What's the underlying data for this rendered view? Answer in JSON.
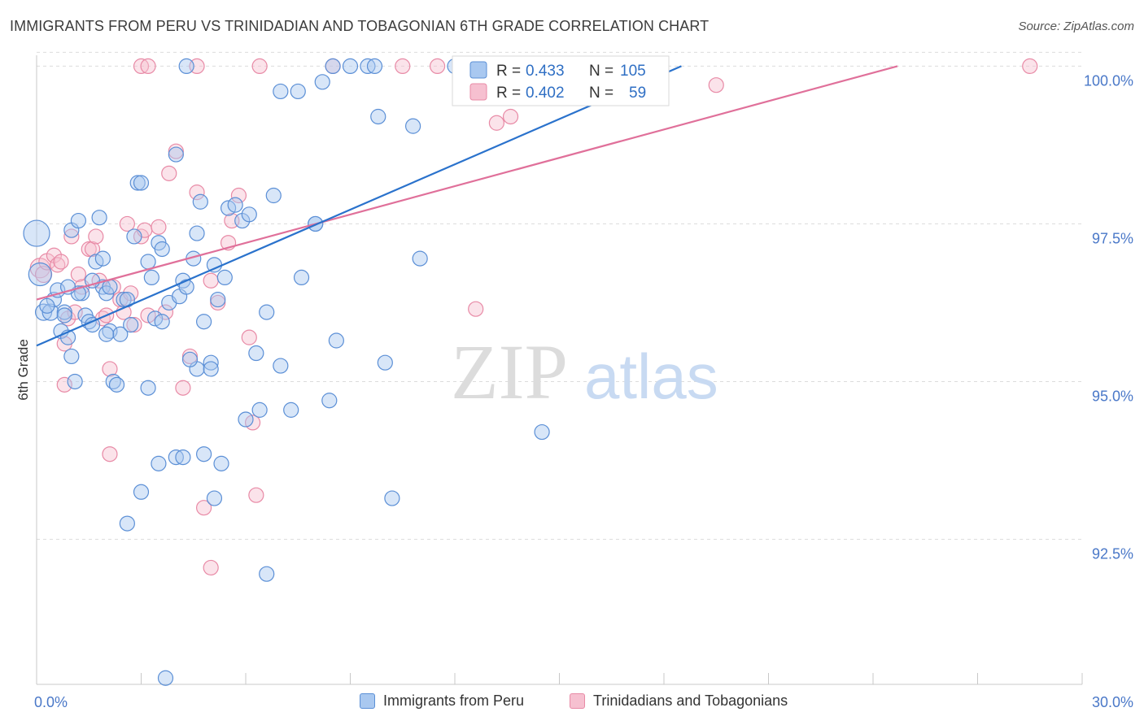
{
  "header": {
    "title": "IMMIGRANTS FROM PERU VS TRINIDADIAN AND TOBAGONIAN 6TH GRADE CORRELATION CHART",
    "source": "Source: ZipAtlas.com"
  },
  "watermark": {
    "zip": "ZIP",
    "atlas": "atlas"
  },
  "colors": {
    "blue_fill": "#a9c8f0",
    "blue_stroke": "#5b8fd6",
    "blue_line": "#2a72cc",
    "pink_fill": "#f6c0d0",
    "pink_stroke": "#e88aa6",
    "pink_line": "#e0709a",
    "tick_label": "#4a78c8",
    "grid": "#dcdcdc"
  },
  "stats_legend": [
    {
      "r_label": "R =",
      "r_value": "0.433",
      "n_label": "N =",
      "n_value": "105"
    },
    {
      "r_label": "R =",
      "r_value": "0.402",
      "n_label": "N =",
      "n_value": "59"
    }
  ],
  "bottom_legend": [
    {
      "label": "Immigrants from Peru"
    },
    {
      "label": "Trinidadians and Tobagonians"
    }
  ],
  "chart_data": {
    "type": "scatter",
    "title": "IMMIGRANTS FROM PERU VS TRINIDADIAN AND TOBAGONIAN 6TH GRADE CORRELATION CHART",
    "xlabel": "",
    "ylabel": "6th Grade",
    "xlim": [
      0,
      30
    ],
    "ylim": [
      90.2,
      100.25
    ],
    "x_tick_labels": [
      {
        "value": 0,
        "label": "0.0%"
      },
      {
        "value": 30,
        "label": "30.0%"
      }
    ],
    "y_tick_labels": [
      {
        "value": 100,
        "label": "100.0%"
      },
      {
        "value": 97.5,
        "label": "97.5%"
      },
      {
        "value": 95,
        "label": "95.0%"
      },
      {
        "value": 92.5,
        "label": "92.5%"
      }
    ],
    "series": [
      {
        "name": "Immigrants from Peru",
        "R": 0.433,
        "N": 105,
        "trend": {
          "x0": 0,
          "y0": 95.57,
          "x1": 18.5,
          "y1": 100
        },
        "points": [
          [
            0.0,
            97.35,
            16
          ],
          [
            0.1,
            96.7,
            14
          ],
          [
            0.2,
            96.1,
            10
          ],
          [
            0.4,
            96.1,
            10
          ],
          [
            0.5,
            96.3,
            9
          ],
          [
            0.6,
            96.45,
            9
          ],
          [
            0.7,
            95.8,
            9
          ],
          [
            0.8,
            96.1,
            9
          ],
          [
            0.9,
            95.7,
            9
          ],
          [
            1.0,
            97.4,
            9
          ],
          [
            1.0,
            95.4,
            9
          ],
          [
            1.1,
            95.0,
            9
          ],
          [
            1.2,
            97.55,
            9
          ],
          [
            1.3,
            96.4,
            9
          ],
          [
            1.4,
            96.05,
            9
          ],
          [
            1.5,
            95.95,
            9
          ],
          [
            1.6,
            95.9,
            9
          ],
          [
            1.7,
            96.9,
            9
          ],
          [
            1.8,
            97.6,
            9
          ],
          [
            1.9,
            96.5,
            9
          ],
          [
            2.0,
            96.4,
            9
          ],
          [
            2.1,
            95.8,
            9
          ],
          [
            2.2,
            95.0,
            9
          ],
          [
            2.4,
            95.75,
            9
          ],
          [
            2.5,
            96.3,
            9
          ],
          [
            2.6,
            96.3,
            9
          ],
          [
            2.7,
            95.9,
            9
          ],
          [
            2.8,
            97.3,
            9
          ],
          [
            2.9,
            98.15,
            9
          ],
          [
            3.0,
            98.15,
            9
          ],
          [
            3.2,
            96.9,
            9
          ],
          [
            3.3,
            96.65,
            9
          ],
          [
            3.4,
            96.0,
            9
          ],
          [
            3.5,
            97.2,
            9
          ],
          [
            3.6,
            97.1,
            9
          ],
          [
            3.8,
            96.25,
            9
          ],
          [
            4.0,
            98.6,
            9
          ],
          [
            4.1,
            96.35,
            9
          ],
          [
            4.2,
            96.6,
            9
          ],
          [
            4.3,
            96.5,
            9
          ],
          [
            4.5,
            96.95,
            9
          ],
          [
            4.6,
            97.35,
            9
          ],
          [
            4.7,
            97.85,
            9
          ],
          [
            4.8,
            95.95,
            9
          ],
          [
            5.0,
            95.3,
            9
          ],
          [
            5.1,
            96.85,
            9
          ],
          [
            5.2,
            96.3,
            9
          ],
          [
            5.4,
            96.65,
            9
          ],
          [
            5.5,
            97.75,
            9
          ],
          [
            5.7,
            97.8,
            9
          ],
          [
            5.9,
            97.55,
            9
          ],
          [
            6.1,
            97.65,
            9
          ],
          [
            6.3,
            95.45,
            9
          ],
          [
            6.6,
            96.1,
            9
          ],
          [
            6.8,
            97.95,
            9
          ],
          [
            7.0,
            95.25,
            9
          ],
          [
            7.3,
            94.55,
            9
          ],
          [
            7.6,
            96.65,
            9
          ],
          [
            8.0,
            97.5,
            9
          ],
          [
            8.2,
            99.75,
            9
          ],
          [
            8.4,
            94.7,
            9
          ],
          [
            8.6,
            95.65,
            9
          ],
          [
            9.0,
            100.0,
            9
          ],
          [
            9.5,
            100.0,
            9
          ],
          [
            9.8,
            99.2,
            9
          ],
          [
            10.0,
            95.3,
            9
          ],
          [
            10.2,
            93.15,
            9
          ],
          [
            10.8,
            99.05,
            9
          ],
          [
            11.0,
            96.95,
            9
          ],
          [
            12.0,
            100.0,
            9
          ],
          [
            13.0,
            100.0,
            9
          ],
          [
            14.5,
            94.2,
            9
          ],
          [
            3.7,
            90.3,
            9
          ],
          [
            2.6,
            92.75,
            9
          ],
          [
            3.0,
            93.25,
            9
          ],
          [
            3.5,
            93.7,
            9
          ],
          [
            4.0,
            93.8,
            9
          ],
          [
            4.2,
            93.8,
            9
          ],
          [
            4.8,
            93.85,
            9
          ],
          [
            5.1,
            93.15,
            9
          ],
          [
            5.3,
            93.7,
            9
          ],
          [
            6.0,
            94.4,
            9
          ],
          [
            6.4,
            94.55,
            9
          ],
          [
            6.6,
            91.95,
            9
          ],
          [
            7.0,
            99.6,
            9
          ],
          [
            7.5,
            99.6,
            9
          ],
          [
            4.3,
            100.0,
            9
          ],
          [
            8.5,
            100.0,
            9
          ],
          [
            9.7,
            100.0,
            9
          ],
          [
            12.5,
            99.5,
            9
          ],
          [
            3.2,
            94.9,
            9
          ],
          [
            2.3,
            94.95,
            9
          ],
          [
            4.6,
            95.2,
            9
          ],
          [
            1.6,
            96.6,
            9
          ],
          [
            2.1,
            96.5,
            9
          ],
          [
            0.3,
            96.2,
            9
          ],
          [
            0.8,
            96.05,
            9
          ],
          [
            1.2,
            96.4,
            9
          ],
          [
            5.0,
            95.2,
            9
          ],
          [
            2.0,
            95.75,
            9
          ],
          [
            3.6,
            95.95,
            9
          ],
          [
            4.4,
            95.35,
            9
          ],
          [
            0.9,
            96.5,
            9
          ],
          [
            8.0,
            97.5,
            9
          ],
          [
            1.9,
            96.95,
            9
          ]
        ]
      },
      {
        "name": "Trinidadians and Tobagonians",
        "R": 0.402,
        "N": 59,
        "trend": {
          "x0": 0,
          "y0": 96.3,
          "x1": 24.7,
          "y1": 100
        },
        "points": [
          [
            0.1,
            96.8,
            12
          ],
          [
            0.2,
            96.7,
            10
          ],
          [
            0.3,
            96.9,
            10
          ],
          [
            0.5,
            97.0,
            9
          ],
          [
            0.6,
            96.85,
            9
          ],
          [
            0.7,
            96.9,
            9
          ],
          [
            0.8,
            95.6,
            9
          ],
          [
            0.9,
            96.0,
            9
          ],
          [
            1.0,
            97.3,
            9
          ],
          [
            1.1,
            96.1,
            9
          ],
          [
            1.2,
            96.7,
            9
          ],
          [
            1.3,
            96.5,
            9
          ],
          [
            1.5,
            97.1,
            9
          ],
          [
            1.6,
            97.1,
            9
          ],
          [
            1.7,
            97.3,
            9
          ],
          [
            1.8,
            96.6,
            9
          ],
          [
            1.9,
            96.0,
            9
          ],
          [
            2.0,
            96.05,
            9
          ],
          [
            2.1,
            95.2,
            9
          ],
          [
            2.2,
            96.5,
            9
          ],
          [
            2.4,
            96.3,
            9
          ],
          [
            2.5,
            96.1,
            9
          ],
          [
            2.6,
            97.5,
            9
          ],
          [
            2.7,
            96.4,
            9
          ],
          [
            2.8,
            95.9,
            9
          ],
          [
            3.0,
            97.3,
            9
          ],
          [
            3.1,
            97.4,
            9
          ],
          [
            3.2,
            96.05,
            9
          ],
          [
            3.5,
            97.45,
            9
          ],
          [
            3.7,
            96.1,
            9
          ],
          [
            3.8,
            98.3,
            9
          ],
          [
            4.0,
            98.65,
            9
          ],
          [
            4.2,
            94.9,
            9
          ],
          [
            4.4,
            95.4,
            9
          ],
          [
            4.6,
            98.0,
            9
          ],
          [
            4.8,
            93.0,
            9
          ],
          [
            5.0,
            96.6,
            9
          ],
          [
            5.2,
            96.25,
            9
          ],
          [
            5.5,
            97.2,
            9
          ],
          [
            5.6,
            97.55,
            9
          ],
          [
            5.8,
            97.95,
            9
          ],
          [
            6.1,
            95.7,
            9
          ],
          [
            6.2,
            94.35,
            9
          ],
          [
            6.3,
            93.2,
            9
          ],
          [
            3.0,
            100.0,
            9
          ],
          [
            3.2,
            100.0,
            9
          ],
          [
            4.6,
            100.0,
            9
          ],
          [
            6.4,
            100.0,
            9
          ],
          [
            8.5,
            100.0,
            9
          ],
          [
            10.5,
            100.0,
            9
          ],
          [
            11.5,
            100.0,
            9
          ],
          [
            12.6,
            96.15,
            9
          ],
          [
            13.2,
            99.1,
            9
          ],
          [
            13.6,
            99.2,
            9
          ],
          [
            19.5,
            99.7,
            9
          ],
          [
            28.5,
            100.0,
            9
          ],
          [
            5.0,
            92.05,
            9
          ],
          [
            2.1,
            93.85,
            9
          ],
          [
            0.8,
            94.95,
            9
          ]
        ]
      }
    ]
  }
}
